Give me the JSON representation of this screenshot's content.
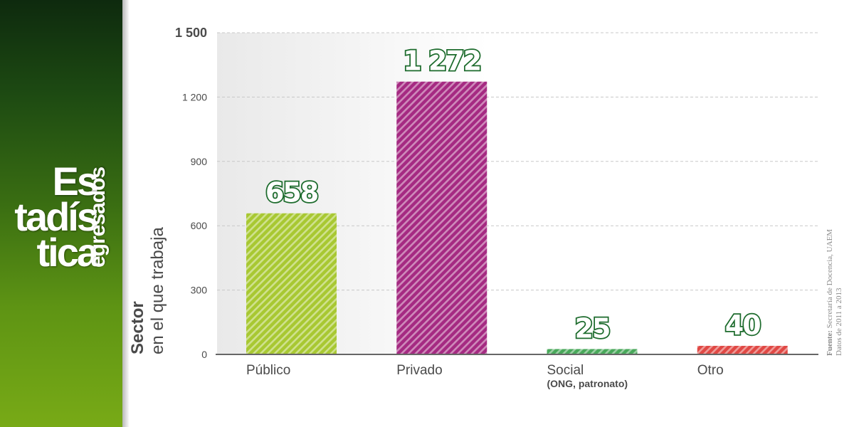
{
  "sidebar": {
    "title_line_1": "Es",
    "title_line_2": "tadís",
    "title_line_3": "tica",
    "subtitle": "egresados"
  },
  "y_title": {
    "line_1": "Sector",
    "line_2": "en el que trabaja"
  },
  "source": {
    "label": "Fuente:",
    "text": "Secretaría de Docencia, UAEM",
    "line_2": "Datos de 2011 a 2013"
  },
  "colors": {
    "sidebar_dark": "#0e2a0e",
    "sidebar_light": "#78aa16",
    "value_outline": "#1c6b2c"
  },
  "chart_data": {
    "type": "bar",
    "title": "",
    "xlabel": "",
    "ylabel": "Sector en el que trabaja",
    "categories": [
      "Público",
      "Privado",
      "Social",
      "Otro"
    ],
    "category_sublabels": [
      "",
      "",
      "(ONG, patronato)",
      ""
    ],
    "values": [
      658,
      1272,
      25,
      40
    ],
    "value_labels": [
      "658",
      "1 272",
      "25",
      "40"
    ],
    "bar_colors": [
      "#a8c832",
      "#a52a82",
      "#48a85a",
      "#e04844"
    ],
    "ylim": [
      0,
      1500
    ],
    "yticks": [
      0,
      300,
      600,
      900,
      1200,
      1500
    ],
    "ytick_labels": [
      "0",
      "300",
      "600",
      "900",
      "1 200",
      "1 500"
    ],
    "grid": true,
    "legend": "none"
  }
}
